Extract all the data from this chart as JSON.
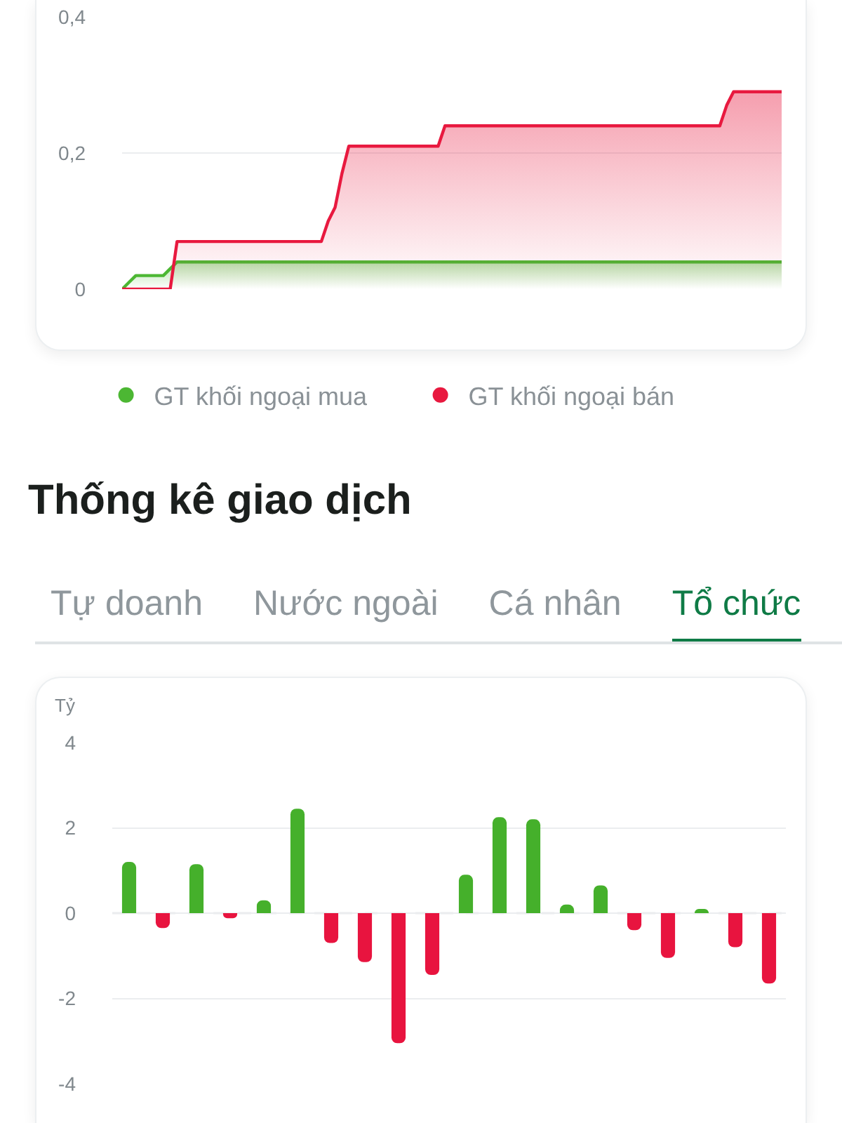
{
  "chart_data": [
    {
      "type": "area",
      "categories": [
        null,
        null,
        null,
        null,
        null,
        null,
        null,
        null,
        null,
        null,
        null,
        null,
        null,
        null,
        null,
        null,
        null,
        null,
        null,
        null,
        null,
        null,
        null,
        null,
        null,
        null,
        null,
        null,
        null,
        null,
        null,
        null,
        null,
        null,
        null,
        null,
        null,
        null,
        null,
        null,
        null,
        null,
        null,
        null,
        null,
        null,
        null,
        null,
        null,
        null,
        null,
        null,
        null,
        null,
        null,
        null,
        null,
        null,
        null,
        null,
        null,
        null,
        null,
        null,
        null,
        null,
        null,
        null,
        null,
        null,
        null,
        null,
        null,
        null,
        null,
        null,
        null,
        null,
        null,
        null,
        null,
        null,
        null,
        null,
        null,
        null,
        null,
        null,
        null,
        null,
        null,
        null,
        null,
        null,
        null,
        null,
        null
      ],
      "series": [
        {
          "name": "GT khối ngoại mua",
          "color": "#4cb733",
          "values": [
            0,
            0.01,
            0.02,
            0.02,
            0.02,
            0.02,
            0.02,
            0.03,
            0.04,
            0.04,
            0.04,
            0.04,
            0.04,
            0.04,
            0.04,
            0.04,
            0.04,
            0.04,
            0.04,
            0.04,
            0.04,
            0.04,
            0.04,
            0.04,
            0.04,
            0.04,
            0.04,
            0.04,
            0.04,
            0.04,
            0.04,
            0.04,
            0.04,
            0.04,
            0.04,
            0.04,
            0.04,
            0.04,
            0.04,
            0.04,
            0.04,
            0.04,
            0.04,
            0.04,
            0.04,
            0.04,
            0.04,
            0.04,
            0.04,
            0.04,
            0.04,
            0.04,
            0.04,
            0.04,
            0.04,
            0.04,
            0.04,
            0.04,
            0.04,
            0.04,
            0.04,
            0.04,
            0.04,
            0.04,
            0.04,
            0.04,
            0.04,
            0.04,
            0.04,
            0.04,
            0.04,
            0.04,
            0.04,
            0.04,
            0.04,
            0.04,
            0.04,
            0.04,
            0.04,
            0.04,
            0.04,
            0.04,
            0.04,
            0.04,
            0.04,
            0.04,
            0.04,
            0.04,
            0.04,
            0.04,
            0.04,
            0.04,
            0.04,
            0.04,
            0.04,
            0.04,
            0.04
          ]
        },
        {
          "name": "GT khối ngoại bán",
          "color": "#e8193f",
          "values": [
            0,
            0,
            0,
            0,
            0,
            0,
            0,
            0,
            0.07,
            0.07,
            0.07,
            0.07,
            0.07,
            0.07,
            0.07,
            0.07,
            0.07,
            0.07,
            0.07,
            0.07,
            0.07,
            0.07,
            0.07,
            0.07,
            0.07,
            0.07,
            0.07,
            0.07,
            0.07,
            0.07,
            0.1,
            0.12,
            0.17,
            0.21,
            0.21,
            0.21,
            0.21,
            0.21,
            0.21,
            0.21,
            0.21,
            0.21,
            0.21,
            0.21,
            0.21,
            0.21,
            0.21,
            0.24,
            0.24,
            0.24,
            0.24,
            0.24,
            0.24,
            0.24,
            0.24,
            0.24,
            0.24,
            0.24,
            0.24,
            0.24,
            0.24,
            0.24,
            0.24,
            0.24,
            0.24,
            0.24,
            0.24,
            0.24,
            0.24,
            0.24,
            0.24,
            0.24,
            0.24,
            0.24,
            0.24,
            0.24,
            0.24,
            0.24,
            0.24,
            0.24,
            0.24,
            0.24,
            0.24,
            0.24,
            0.24,
            0.24,
            0.24,
            0.24,
            0.27,
            0.29,
            0.29,
            0.29,
            0.29,
            0.29,
            0.29,
            0.29,
            0.29
          ]
        }
      ],
      "ylim": [
        0,
        0.4
      ],
      "yticks": [
        0,
        {
          "value": 0.2,
          "label": "0,2"
        },
        {
          "value": 0.4,
          "label": "0,4"
        }
      ],
      "grid": "y",
      "legend": "bottom",
      "tick_labels": "y"
    },
    {
      "type": "bar",
      "title": "Thống kê giao dịch",
      "annotations": [
        "Tự doanh",
        "Nước ngoài",
        "Cá nhân",
        "Tổ chức"
      ],
      "ylabel": "Tỷ",
      "categories": [
        null,
        null,
        null,
        null,
        null,
        null,
        null,
        null,
        null,
        null,
        null,
        null,
        null,
        null,
        null,
        null,
        null,
        null,
        null,
        null
      ],
      "values": [
        1.2,
        -0.35,
        1.15,
        -0.12,
        0.3,
        2.45,
        -0.7,
        -1.15,
        -3.05,
        -1.45,
        0.9,
        2.25,
        2.2,
        0.2,
        0.65,
        -0.4,
        -1.05,
        0.1,
        -0.8,
        -1.65
      ],
      "colors": [
        "#45b02b",
        "#e8143f",
        "#45b02b",
        "#e8143f",
        "#45b02b",
        "#45b02b",
        "#e8143f",
        "#e8143f",
        "#e8143f",
        "#e8143f",
        "#45b02b",
        "#45b02b",
        "#45b02b",
        "#45b02b",
        "#45b02b",
        "#e8143f",
        "#e8143f",
        "#45b02b",
        "#e8143f",
        "#e8143f"
      ],
      "ylim": [
        -4,
        4
      ],
      "yticks": [
        -4,
        -2,
        0,
        2,
        4
      ],
      "grid": "y",
      "ref_lines": [
        {
          "axis": "y",
          "value": 0,
          "line_style": "dashed",
          "color": "#cdd1d5"
        }
      ],
      "tick_labels": "y"
    }
  ]
}
